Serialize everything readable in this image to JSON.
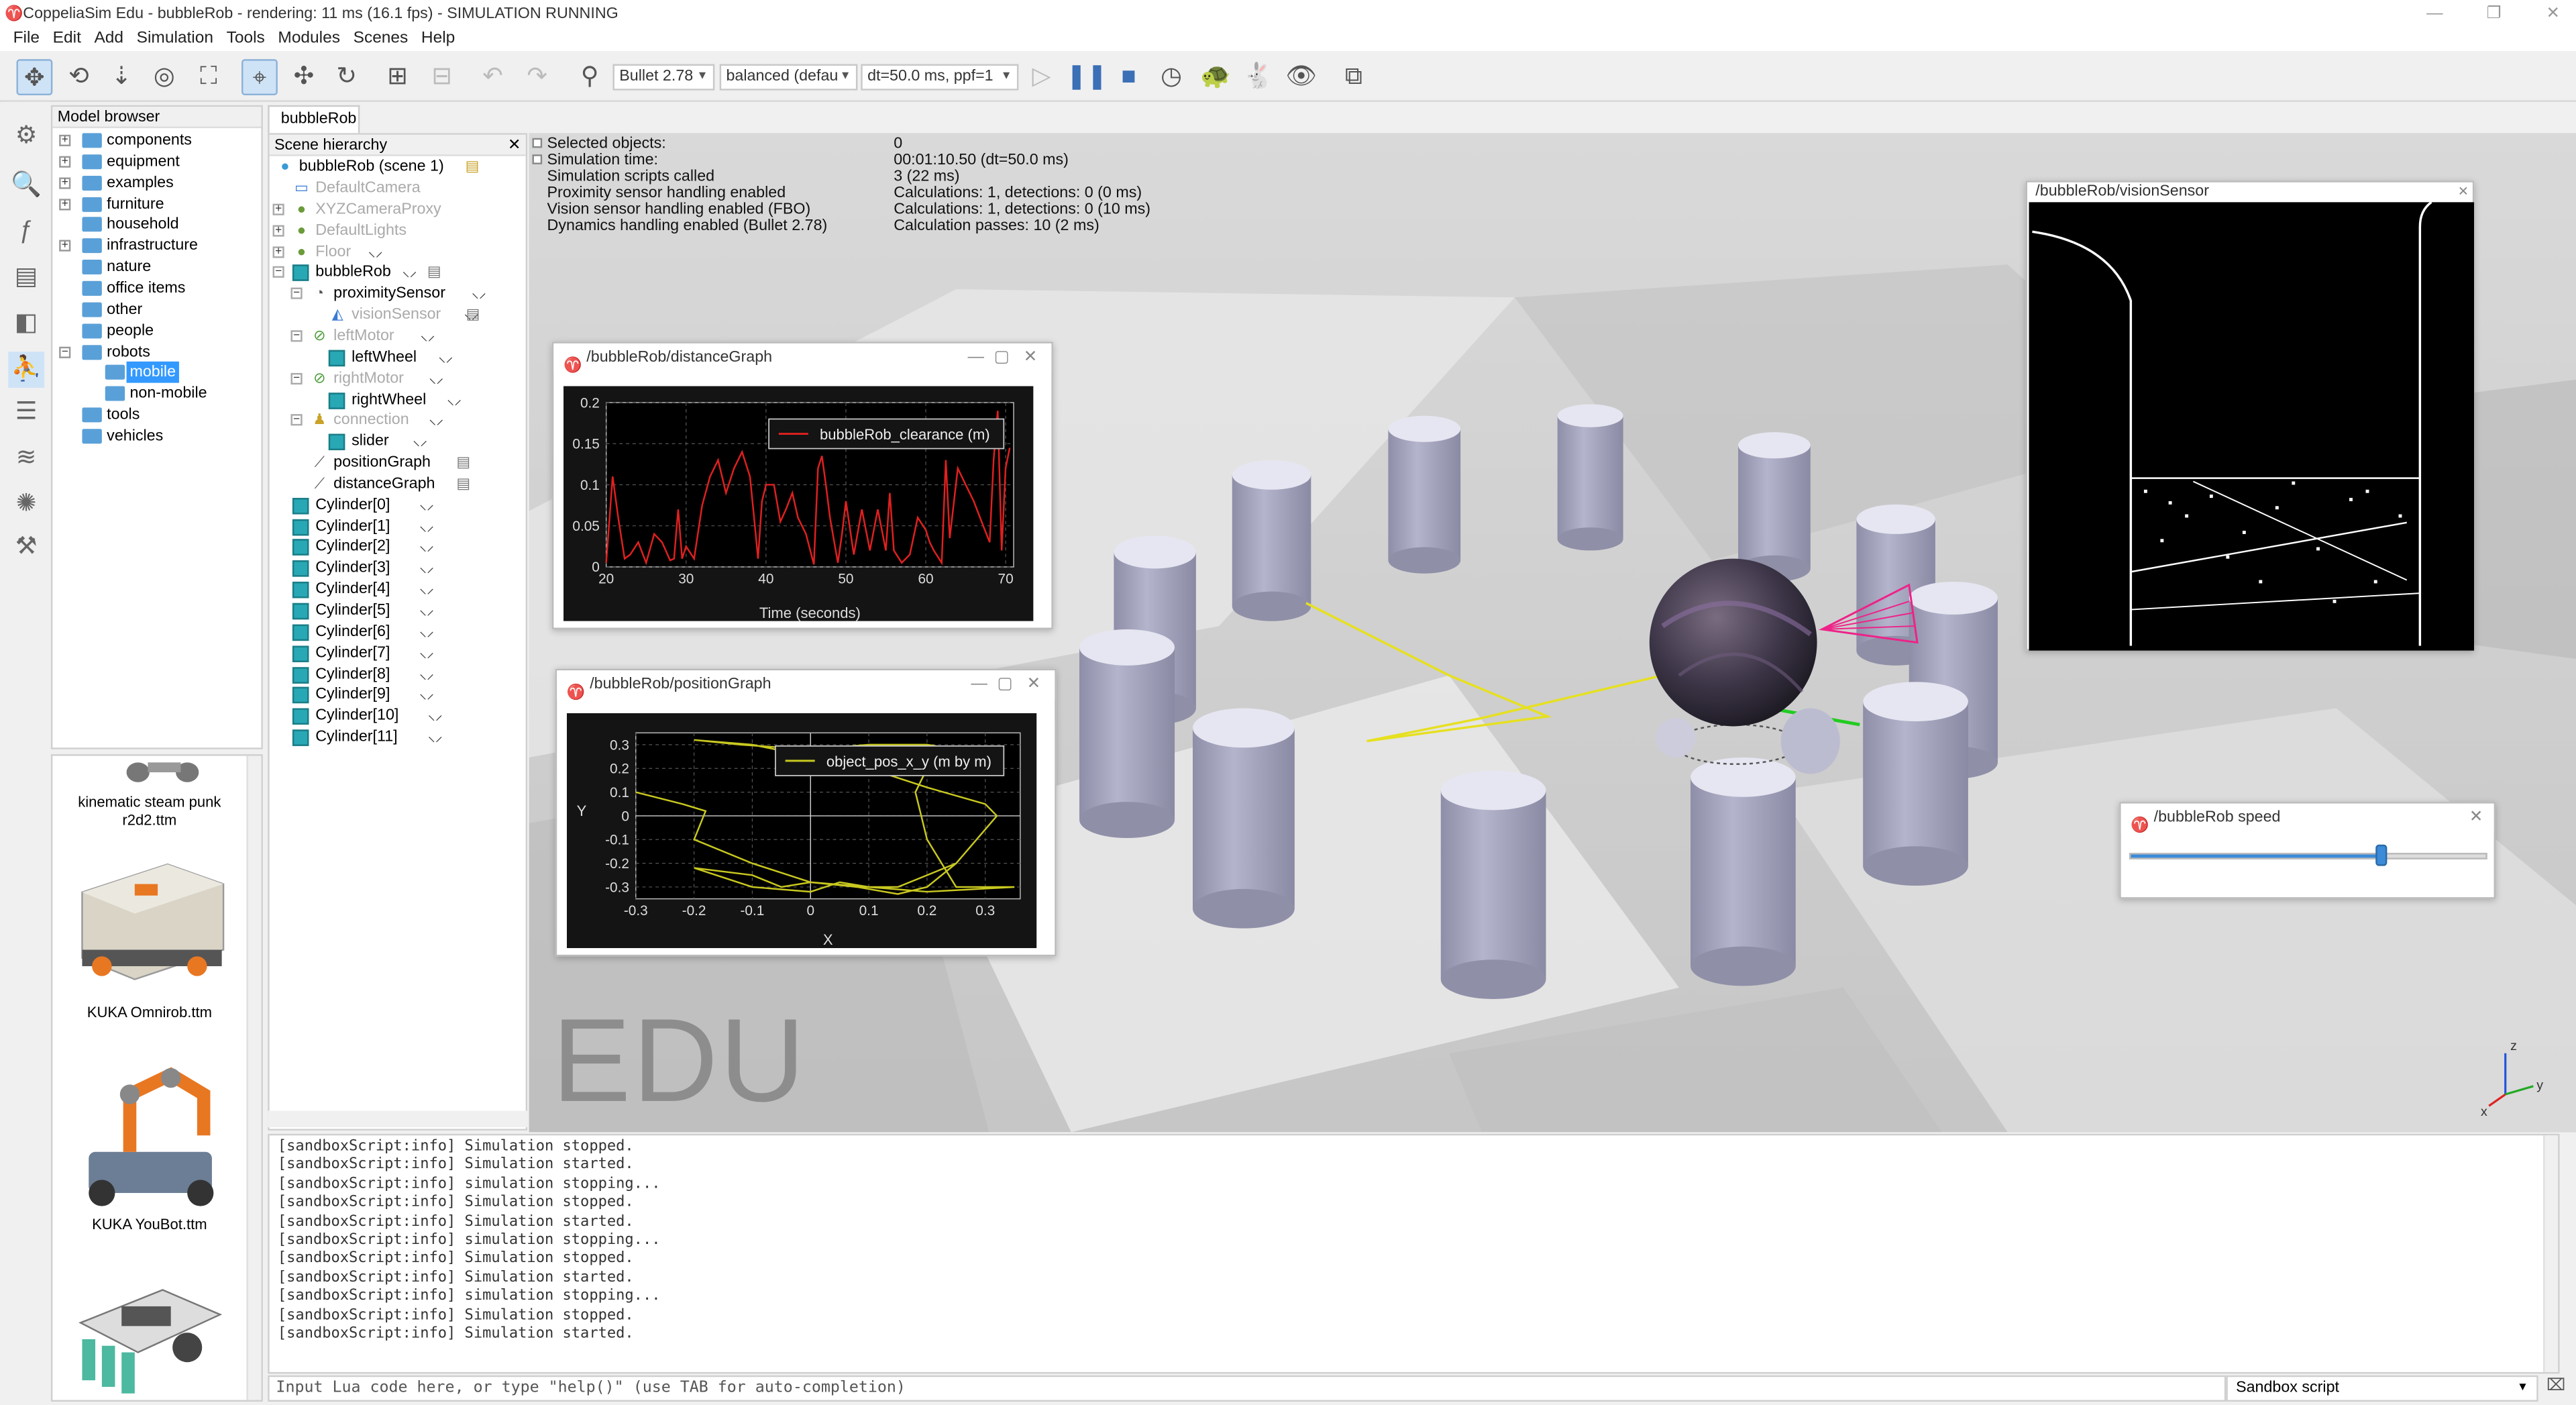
{
  "window": {
    "title": "CoppeliaSim Edu - bubbleRob - rendering: 11 ms (16.1 fps) - SIMULATION RUNNING",
    "minimize": "—",
    "maximize": "❐",
    "close": "✕"
  },
  "menu": [
    "File",
    "Edit",
    "Add",
    "Simulation",
    "Tools",
    "Modules",
    "Scenes",
    "Help"
  ],
  "toolbar": {
    "engine": "Bullet 2.78",
    "mode": "balanced (defau",
    "timestep": "dt=50.0 ms, ppf=1"
  },
  "model_browser": {
    "title": "Model browser",
    "items": [
      {
        "label": "components",
        "expandable": true
      },
      {
        "label": "equipment",
        "expandable": true
      },
      {
        "label": "examples",
        "expandable": true
      },
      {
        "label": "furniture",
        "expandable": true
      },
      {
        "label": "household",
        "expandable": false
      },
      {
        "label": "infrastructure",
        "expandable": true
      },
      {
        "label": "nature",
        "expandable": false
      },
      {
        "label": "office items",
        "expandable": false
      },
      {
        "label": "other",
        "expandable": false
      },
      {
        "label": "people",
        "expandable": false
      },
      {
        "label": "robots",
        "expandable": true
      },
      {
        "label": "mobile",
        "expandable": false,
        "selected": true
      },
      {
        "label": "non-mobile",
        "expandable": false
      },
      {
        "label": "tools",
        "expandable": false
      },
      {
        "label": "vehicles",
        "expandable": false
      }
    ],
    "thumbnails": [
      "kinematic steam punk r2d2.ttm",
      "KUKA Omnirob.ttm",
      "KUKA YouBot.ttm"
    ]
  },
  "scene_tab": "bubbleRob",
  "hierarchy": {
    "title": "Scene hierarchy",
    "root": "bubbleRob (scene 1)",
    "items": [
      {
        "label": "DefaultCamera",
        "dim": true
      },
      {
        "label": "XYZCameraProxy",
        "dim": true
      },
      {
        "label": "DefaultLights",
        "dim": true
      },
      {
        "label": "Floor",
        "dim": true
      },
      {
        "label": "bubbleRob",
        "dim": false
      },
      {
        "label": "proximitySensor",
        "dim": false
      },
      {
        "label": "visionSensor",
        "dim": true
      },
      {
        "label": "leftMotor",
        "dim": true
      },
      {
        "label": "leftWheel",
        "dim": false
      },
      {
        "label": "rightMotor",
        "dim": true
      },
      {
        "label": "rightWheel",
        "dim": false
      },
      {
        "label": "connection",
        "dim": true
      },
      {
        "label": "slider",
        "dim": false
      },
      {
        "label": "positionGraph",
        "dim": false
      },
      {
        "label": "distanceGraph",
        "dim": false
      },
      {
        "label": "Cylinder[0]",
        "dim": false
      },
      {
        "label": "Cylinder[1]",
        "dim": false
      },
      {
        "label": "Cylinder[2]",
        "dim": false
      },
      {
        "label": "Cylinder[3]",
        "dim": false
      },
      {
        "label": "Cylinder[4]",
        "dim": false
      },
      {
        "label": "Cylinder[5]",
        "dim": false
      },
      {
        "label": "Cylinder[6]",
        "dim": false
      },
      {
        "label": "Cylinder[7]",
        "dim": false
      },
      {
        "label": "Cylinder[8]",
        "dim": false
      },
      {
        "label": "Cylinder[9]",
        "dim": false
      },
      {
        "label": "Cylinder[10]",
        "dim": false
      },
      {
        "label": "Cylinder[11]",
        "dim": false
      }
    ]
  },
  "stats": {
    "labels": [
      "Selected objects:",
      "Simulation time:",
      "Simulation scripts called",
      "Proximity sensor handling enabled",
      "Vision sensor handling enabled (FBO)",
      "Dynamics handling enabled (Bullet 2.78)"
    ],
    "values": [
      "0",
      "00:01:10.50 (dt=50.0 ms)",
      "3 (22 ms)",
      "Calculations: 1, detections: 0 (0 ms)",
      "Calculations: 1, detections: 0 (10 ms)",
      "Calculation passes: 10 (2 ms)"
    ]
  },
  "watermark": "EDU",
  "distance_graph": {
    "title": "/bubbleRob/distanceGraph",
    "chart_data": {
      "type": "line",
      "title": "",
      "xlabel": "Time (seconds)",
      "ylabel": "",
      "xlim": [
        20,
        71
      ],
      "ylim": [
        0,
        0.2
      ],
      "xticks": [
        "20",
        "30",
        "40",
        "50",
        "60",
        "70"
      ],
      "yticks": [
        "0",
        "0.05",
        "0.1",
        "0.15",
        "0.2"
      ],
      "grid": true,
      "legend": "top-right",
      "color": "#e02020",
      "series": [
        {
          "name": "bubbleRob_clearance (m)",
          "x": [
            20,
            20.8,
            21.5,
            22.3,
            23,
            24,
            25,
            26,
            27,
            28,
            28.5,
            29,
            29.5,
            30,
            31,
            32,
            33,
            34,
            35,
            36,
            37,
            38,
            38.5,
            39,
            39.5,
            40,
            41,
            41.8,
            42.5,
            43.3,
            44,
            45,
            46,
            46.5,
            47,
            47.5,
            48,
            49,
            49.5,
            50,
            51,
            52,
            53,
            54,
            55,
            55.5,
            56,
            57,
            58,
            59,
            60,
            60.5,
            61,
            62,
            62.5,
            63,
            64,
            65,
            66,
            67,
            68,
            68.5,
            69,
            69.5,
            70,
            70.5
          ],
          "y": [
            0.005,
            0.11,
            0.06,
            0.01,
            0.015,
            0.03,
            0.005,
            0.04,
            0.03,
            0.008,
            0.01,
            0.07,
            0.01,
            0.025,
            0.01,
            0.075,
            0.11,
            0.13,
            0.09,
            0.12,
            0.14,
            0.11,
            0.06,
            0.01,
            0.08,
            0.1,
            0.1,
            0.055,
            0.07,
            0.09,
            0.06,
            0.04,
            0.003,
            0.12,
            0.135,
            0.1,
            0.06,
            0.005,
            0.04,
            0.08,
            0.015,
            0.07,
            0.02,
            0.07,
            0.02,
            0.09,
            0.02,
            0.005,
            0.015,
            0.06,
            0.045,
            0.03,
            0.02,
            0.005,
            0.13,
            0.035,
            0.12,
            0.1,
            0.08,
            0.055,
            0.03,
            0.13,
            0.19,
            0.02,
            0.12,
            0.145
          ]
        }
      ]
    }
  },
  "position_graph": {
    "title": "/bubbleRob/positionGraph",
    "chart_data": {
      "type": "line",
      "title": "",
      "xlabel": "X",
      "ylabel": "Y",
      "xlim": [
        -0.3,
        0.36
      ],
      "ylim": [
        -0.35,
        0.35
      ],
      "xticks": [
        "-0.3",
        "-0.2",
        "-0.1",
        "0",
        "0.1",
        "0.2",
        "0.3"
      ],
      "yticks": [
        "0.3",
        "0.2",
        "0.1",
        "0",
        "-0.1",
        "-0.2",
        "-0.3"
      ],
      "grid": true,
      "legend": "top-right",
      "color": "#c8c820",
      "series": [
        {
          "name": "object_pos_x_y (m by m)",
          "x": [
            -0.3,
            -0.22,
            -0.18,
            -0.2,
            -0.1,
            0.0,
            0.08,
            0.15,
            0.2,
            0.25,
            0.32,
            0.3,
            0.2,
            0.1,
            0.0,
            -0.1,
            -0.2,
            -0.12,
            0.0,
            0.1,
            0.2,
            0.28,
            0.2,
            0.18,
            0.2,
            0.25,
            0.35,
            0.2,
            0.1,
            0.0,
            -0.05,
            -0.1,
            -0.2,
            -0.1,
            0.0,
            0.05,
            0.1,
            0.15,
            0.2,
            0.25,
            0.2
          ],
          "y": [
            0.1,
            0.05,
            0.02,
            -0.1,
            -0.2,
            -0.28,
            -0.3,
            -0.33,
            -0.3,
            -0.2,
            0.0,
            0.05,
            0.12,
            0.2,
            0.25,
            0.3,
            0.32,
            0.3,
            0.28,
            0.3,
            0.3,
            0.27,
            0.2,
            0.1,
            -0.1,
            -0.3,
            -0.3,
            -0.32,
            -0.3,
            -0.28,
            -0.3,
            -0.25,
            -0.22,
            -0.3,
            -0.32,
            -0.28,
            -0.3,
            -0.3,
            -0.25,
            -0.2,
            -0.3
          ]
        }
      ]
    }
  },
  "vision_sensor": {
    "title": "/bubbleRob/visionSensor"
  },
  "speed_dialog": {
    "title": "/bubbleRob speed",
    "value": 0.7
  },
  "console": {
    "lines": [
      "[sandboxScript:info] Simulation stopped.",
      "[sandboxScript:info] Simulation started.",
      "[sandboxScript:info] simulation stopping...",
      "[sandboxScript:info] Simulation stopped.",
      "[sandboxScript:info] Simulation started.",
      "[sandboxScript:info] simulation stopping...",
      "[sandboxScript:info] Simulation stopped.",
      "[sandboxScript:info] Simulation started.",
      "[sandboxScript:info] simulation stopping...",
      "[sandboxScript:info] Simulation stopped.",
      "[sandboxScript:info] Simulation started."
    ],
    "input_placeholder": "Input Lua code here, or type \"help()\" (use TAB for auto-completion)",
    "script_selector": "Sandbox script"
  },
  "axis_labels": {
    "z": "z",
    "y": "y",
    "x": "x"
  }
}
